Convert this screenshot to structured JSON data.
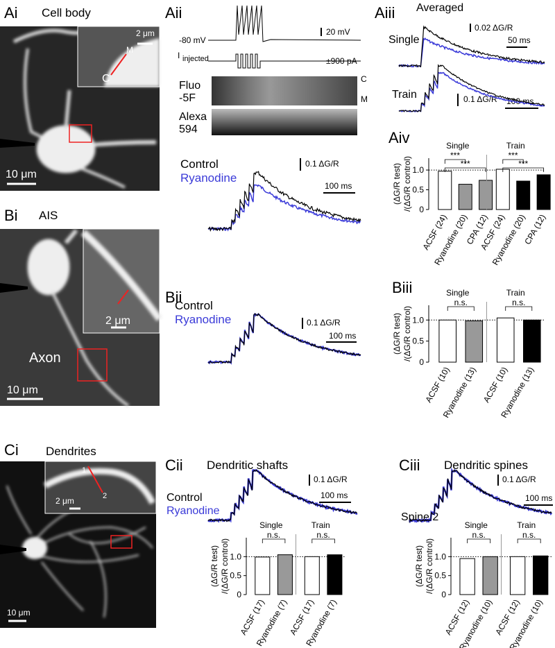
{
  "Ai": {
    "label": "Ai",
    "title": "Cell body",
    "inset_scale": "2 μm",
    "marker_m": "M",
    "marker_c": "C",
    "scale": "10 μm"
  },
  "Aii": {
    "label": "Aii",
    "holding": "-80 mV",
    "v_scale": "20 mV",
    "i_label": "I",
    "i_sub": "injected",
    "i_amp": "±900 pA",
    "fluo_1": "Fluo",
    "fluo_2": "-5F",
    "line_c": "C",
    "line_m": "M",
    "alexa_1": "Alexa",
    "alexa_2": "594",
    "control": "Control",
    "ryanodine": "Ryanodine",
    "y_scale": "0.1 ΔG/R",
    "t_scale": "100 ms"
  },
  "Aiii": {
    "label": "Aiii",
    "title": "Averaged",
    "single": "Single",
    "single_y_scale": "0.02 ΔG/R",
    "single_t_scale": "50 ms",
    "train": "Train",
    "train_y_scale": "0.1 ΔG/R",
    "train_t_scale": "100 ms"
  },
  "Aiv": {
    "label": "Aiv",
    "chart_data": {
      "type": "bar",
      "ylabel": [
        "(ΔG/R test)",
        "/(ΔG/R control)"
      ],
      "ylim": [
        0,
        1.3
      ],
      "yticks": [
        0,
        0.5,
        {
          "value": 1,
          "label": "1.0"
        }
      ],
      "groups": [
        {
          "name": "Single",
          "categories": [
            "ACSF (24)",
            "Ryanodine (20)",
            "CPA (12)"
          ],
          "values": [
            0.97,
            0.64,
            0.74
          ],
          "colors": [
            "#ffffff",
            "#999999",
            "#999999"
          ],
          "annotations": [
            "***",
            "***"
          ]
        },
        {
          "name": "Train",
          "categories": [
            "ACSF (24)",
            "Ryanodine (20)",
            "CPA (12)"
          ],
          "values": [
            1.02,
            0.72,
            0.88
          ],
          "colors": [
            "#ffffff",
            "#000000",
            "#000000"
          ],
          "annotations": [
            "***",
            "***"
          ]
        }
      ]
    }
  },
  "Bi": {
    "label": "Bi",
    "title": "AIS",
    "inset_scale": "2 μm",
    "axon": "Axon",
    "scale": "10 μm"
  },
  "Bii": {
    "label": "Bii",
    "control": "Control",
    "ryanodine": "Ryanodine",
    "y_scale": "0.1 ΔG/R",
    "t_scale": "100 ms"
  },
  "Biii": {
    "label": "Biii",
    "chart_data": {
      "type": "bar",
      "ylabel": [
        "(ΔG/R test)",
        "/(ΔG/R control)"
      ],
      "ylim": [
        0,
        1.35
      ],
      "yticks": [
        0,
        0.5,
        {
          "value": 1,
          "label": "1.0"
        }
      ],
      "groups": [
        {
          "name": "Single",
          "categories": [
            "ACSF (10)",
            "Ryanodine (13)"
          ],
          "values": [
            1.0,
            0.98
          ],
          "colors": [
            "#ffffff",
            "#999999"
          ],
          "annotations": [
            "n.s."
          ]
        },
        {
          "name": "Train",
          "categories": [
            "ACSF (10)",
            "Ryanodine (13)"
          ],
          "values": [
            1.05,
            1.0
          ],
          "colors": [
            "#ffffff",
            "#000000"
          ],
          "annotations": [
            "n.s."
          ]
        }
      ]
    }
  },
  "Ci": {
    "label": "Ci",
    "title": "Dendrites",
    "point_1": "1",
    "point_2": "2",
    "inset_scale": "2 μm",
    "scale": "10 μm"
  },
  "Cii": {
    "label": "Cii",
    "title": "Dendritic shafts",
    "y_scale": "0.1 ΔG/R",
    "t_scale": "100 ms",
    "control": "Control",
    "ryanodine": "Ryanodine",
    "chart_data": {
      "type": "bar",
      "ylabel": [
        "(ΔG/R test)",
        "/(ΔG/R control)"
      ],
      "ylim": [
        0,
        1.5
      ],
      "yticks": [
        0,
        0.5,
        {
          "value": 1,
          "label": "1.0"
        }
      ],
      "groups": [
        {
          "name": "Single",
          "categories": [
            "ACSF (17)",
            "Ryanodine (7)"
          ],
          "values": [
            0.99,
            1.05
          ],
          "colors": [
            "#ffffff",
            "#999999"
          ],
          "annotations": [
            "n.s."
          ]
        },
        {
          "name": "Train",
          "categories": [
            "ACSF (17)",
            "Ryanodine (7)"
          ],
          "values": [
            1.0,
            1.05
          ],
          "colors": [
            "#ffffff",
            "#000000"
          ],
          "annotations": [
            "n.s."
          ]
        }
      ]
    }
  },
  "Ciii": {
    "label": "Ciii",
    "title": "Dendritic spines",
    "y_scale": "0.1 ΔG/R",
    "t_scale": "100 ms",
    "spine": "Spine 2",
    "chart_data": {
      "type": "bar",
      "ylabel": [
        "(ΔG/R test)",
        "/(ΔG/R control)"
      ],
      "ylim": [
        0,
        1.5
      ],
      "yticks": [
        0,
        0.5,
        {
          "value": 1,
          "label": "1.0"
        }
      ],
      "groups": [
        {
          "name": "Single",
          "categories": [
            "ACSF (12)",
            "Ryanodine (10)"
          ],
          "values": [
            0.95,
            1.0
          ],
          "colors": [
            "#ffffff",
            "#999999"
          ],
          "annotations": [
            "n.s."
          ]
        },
        {
          "name": "Train",
          "categories": [
            "ACSF (12)",
            "Ryanodine (10)"
          ],
          "values": [
            1.0,
            1.02
          ],
          "colors": [
            "#ffffff",
            "#000000"
          ],
          "annotations": [
            "n.s."
          ]
        }
      ]
    }
  }
}
